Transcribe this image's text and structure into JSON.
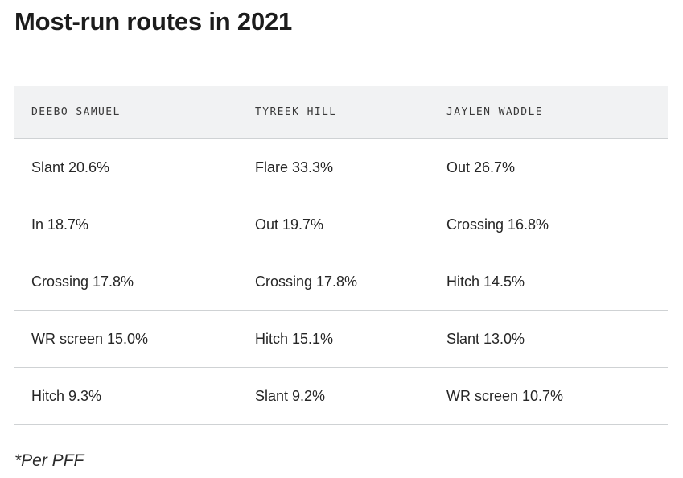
{
  "title": "Most-run routes in 2021",
  "table": {
    "headers": [
      "DEEBO SAMUEL",
      "TYREEK HILL",
      "JAYLEN WADDLE"
    ],
    "rows": [
      [
        "Slant 20.6%",
        "Flare 33.3%",
        "Out 26.7%"
      ],
      [
        "In 18.7%",
        "Out 19.7%",
        "Crossing 16.8%"
      ],
      [
        "Crossing 17.8%",
        "Crossing 17.8%",
        "Hitch 14.5%"
      ],
      [
        "WR screen 15.0%",
        "Hitch 15.1%",
        "Slant 13.0%"
      ],
      [
        "Hitch 9.3%",
        "Slant 9.2%",
        "WR screen 10.7%"
      ]
    ]
  },
  "footnote": "*Per PFF",
  "colors": {
    "header_background": "#f1f2f3",
    "row_divider": "#cfd2d4",
    "text": "#262626"
  }
}
